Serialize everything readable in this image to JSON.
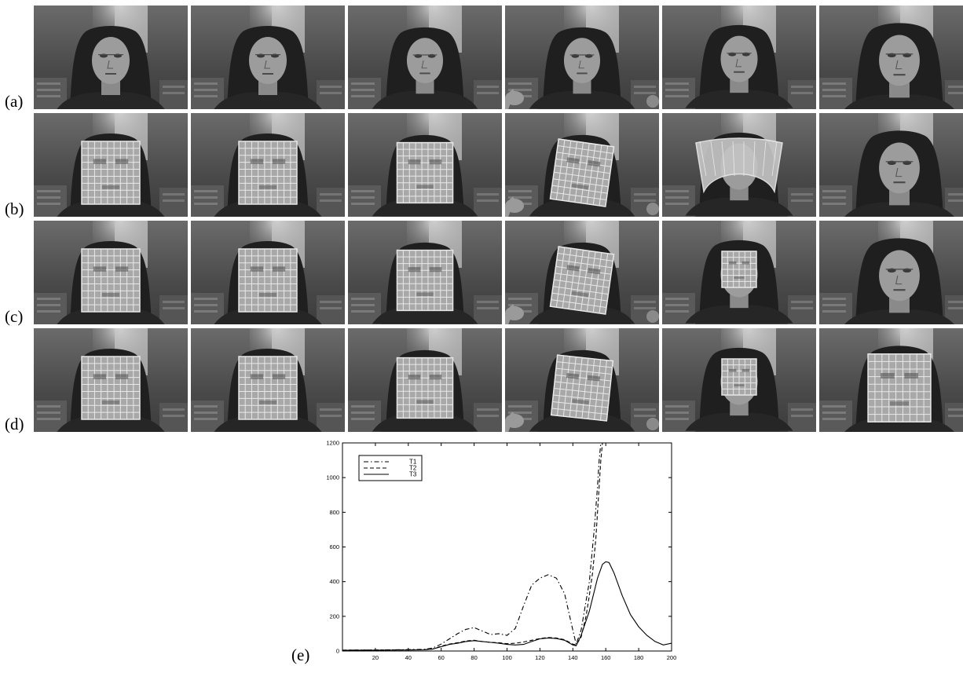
{
  "rows": [
    {
      "label": "(a)",
      "frames": [
        {
          "face": "none",
          "head_dx": 0,
          "tilt": 0,
          "scale": 1.0,
          "fist": false
        },
        {
          "face": "none",
          "head_dx": 0,
          "tilt": 0,
          "scale": 1.0,
          "fist": false
        },
        {
          "face": "none",
          "head_dx": 0,
          "tilt": 0,
          "scale": 0.96,
          "fist": false
        },
        {
          "face": "none",
          "head_dx": 0,
          "tilt": 0,
          "scale": 0.96,
          "fist": true
        },
        {
          "face": "none",
          "head_dx": 0,
          "tilt": 0,
          "scale": 0.98,
          "fist": false,
          "head_up": true
        },
        {
          "face": "none",
          "head_dx": 4,
          "tilt": 0,
          "scale": 1.08,
          "fist": false
        }
      ]
    },
    {
      "label": "(b)",
      "frames": [
        {
          "face": "grid",
          "head_dx": 0,
          "tilt": 0,
          "scale": 1.0,
          "fist": false
        },
        {
          "face": "grid",
          "head_dx": 0,
          "tilt": 0,
          "scale": 1.0,
          "fist": false
        },
        {
          "face": "grid",
          "head_dx": 0,
          "tilt": 0,
          "scale": 0.96,
          "fist": false
        },
        {
          "face": "grid",
          "head_dx": 0,
          "tilt": 8,
          "scale": 0.96,
          "fist": true
        },
        {
          "face": "band",
          "head_dx": 0,
          "tilt": 0,
          "scale": 0.98,
          "fist": false,
          "head_up": true
        },
        {
          "face": "none",
          "head_dx": 4,
          "tilt": 0,
          "scale": 1.08,
          "fist": false
        }
      ]
    },
    {
      "label": "(c)",
      "frames": [
        {
          "face": "grid",
          "head_dx": 0,
          "tilt": 0,
          "scale": 1.0,
          "fist": false
        },
        {
          "face": "grid",
          "head_dx": 0,
          "tilt": 0,
          "scale": 1.0,
          "fist": false
        },
        {
          "face": "grid",
          "head_dx": 0,
          "tilt": 0,
          "scale": 0.96,
          "fist": false
        },
        {
          "face": "grid",
          "head_dx": 0,
          "tilt": 8,
          "scale": 0.96,
          "fist": true
        },
        {
          "face": "grid-small",
          "head_dx": 0,
          "tilt": 0,
          "scale": 0.98,
          "fist": false,
          "head_up": true
        },
        {
          "face": "none",
          "head_dx": 4,
          "tilt": 0,
          "scale": 1.08,
          "fist": false
        }
      ]
    },
    {
      "label": "(d)",
      "frames": [
        {
          "face": "grid",
          "head_dx": 0,
          "tilt": 0,
          "scale": 1.0,
          "fist": false
        },
        {
          "face": "grid",
          "head_dx": 0,
          "tilt": 0,
          "scale": 1.0,
          "fist": false
        },
        {
          "face": "grid",
          "head_dx": 0,
          "tilt": 0,
          "scale": 0.96,
          "fist": false
        },
        {
          "face": "grid",
          "head_dx": 0,
          "tilt": 6,
          "scale": 0.96,
          "fist": true
        },
        {
          "face": "grid-small",
          "head_dx": 0,
          "tilt": 0,
          "scale": 0.98,
          "fist": false,
          "head_up": true
        },
        {
          "face": "grid",
          "head_dx": 4,
          "tilt": 0,
          "scale": 1.08,
          "fist": false
        }
      ]
    }
  ],
  "panel_e_label": "(e)",
  "chart_data": {
    "type": "line",
    "xlim": [
      0,
      200
    ],
    "ylim": [
      0,
      1200
    ],
    "xticks": [
      20,
      40,
      60,
      80,
      100,
      120,
      140,
      160,
      180,
      200
    ],
    "yticks": [
      0,
      200,
      400,
      600,
      800,
      1000,
      1200
    ],
    "legend_position": "top-left",
    "grid": false,
    "series": [
      {
        "name": "T1",
        "dash": "dashdot",
        "x": [
          0,
          20,
          40,
          50,
          55,
          60,
          65,
          70,
          75,
          80,
          85,
          90,
          95,
          100,
          105,
          110,
          115,
          120,
          125,
          130,
          135,
          140,
          142,
          145,
          150,
          153,
          155,
          156,
          157
        ],
        "y": [
          5,
          6,
          8,
          10,
          18,
          40,
          70,
          100,
          125,
          135,
          115,
          95,
          100,
          90,
          130,
          260,
          380,
          420,
          440,
          420,
          330,
          120,
          40,
          120,
          400,
          700,
          950,
          1100,
          1200
        ]
      },
      {
        "name": "T2",
        "dash": "dashed",
        "x": [
          0,
          20,
          40,
          50,
          55,
          60,
          65,
          70,
          75,
          80,
          85,
          90,
          95,
          100,
          105,
          110,
          115,
          120,
          125,
          130,
          135,
          140,
          142,
          145,
          148,
          150,
          152,
          154,
          156,
          157,
          158
        ],
        "y": [
          5,
          6,
          7,
          8,
          12,
          28,
          40,
          48,
          58,
          62,
          55,
          50,
          48,
          42,
          45,
          52,
          62,
          72,
          78,
          75,
          65,
          40,
          35,
          80,
          200,
          320,
          450,
          650,
          950,
          1100,
          1200
        ]
      },
      {
        "name": "T3",
        "dash": "solid",
        "x": [
          0,
          20,
          40,
          50,
          55,
          60,
          65,
          70,
          75,
          80,
          85,
          90,
          95,
          100,
          105,
          110,
          115,
          120,
          125,
          130,
          135,
          140,
          142,
          145,
          150,
          155,
          158,
          160,
          162,
          165,
          170,
          175,
          180,
          185,
          190,
          195,
          200
        ],
        "y": [
          4,
          5,
          6,
          7,
          12,
          25,
          38,
          45,
          55,
          60,
          55,
          50,
          45,
          38,
          35,
          38,
          55,
          70,
          75,
          72,
          62,
          35,
          30,
          90,
          230,
          420,
          500,
          515,
          510,
          450,
          320,
          210,
          140,
          90,
          55,
          35,
          45
        ]
      }
    ]
  }
}
